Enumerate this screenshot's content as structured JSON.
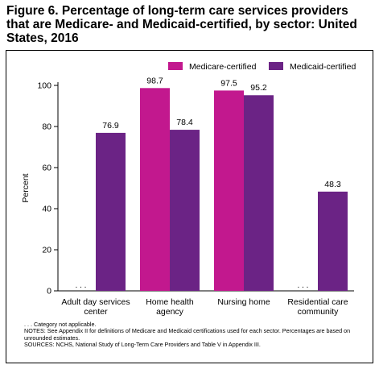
{
  "title": "Figure 6. Percentage of long-term care services providers that are Medicare- and Medicaid-certified, by sector: United States, 2016",
  "notes": [
    ". . . Category not applicable.",
    "NOTES: See Appendix II for definitions of Medicare and Medicaid certifications used for each sector. Percentages are based on unrounded estimates.",
    "SOURCES: NCHS, National Study of Long-Term Care Providers and Table V in Appendix III."
  ],
  "colors": {
    "medicare": "#c2188e",
    "medicaid": "#6b2385"
  },
  "chart_data": {
    "type": "bar",
    "categories": [
      [
        "Adult day services",
        "center"
      ],
      [
        "Home health",
        "agency"
      ],
      [
        "Nursing home"
      ],
      [
        "Residential care",
        "community"
      ]
    ],
    "series": [
      {
        "name": "Medicare-certified",
        "values": [
          null,
          98.7,
          97.5,
          null
        ],
        "labels": [
          ". . .",
          "98.7",
          "97.5",
          ". . ."
        ]
      },
      {
        "name": "Medicaid-certified",
        "values": [
          76.9,
          78.4,
          95.2,
          48.3
        ],
        "labels": [
          "76.9",
          "78.4",
          "95.2",
          "48.3"
        ]
      }
    ],
    "ylabel": "Percent",
    "xlabel": "",
    "ylim": [
      0,
      100
    ],
    "yticks": [
      0,
      20,
      40,
      60,
      80,
      100
    ],
    "legend": "top-right",
    "grid": false
  }
}
